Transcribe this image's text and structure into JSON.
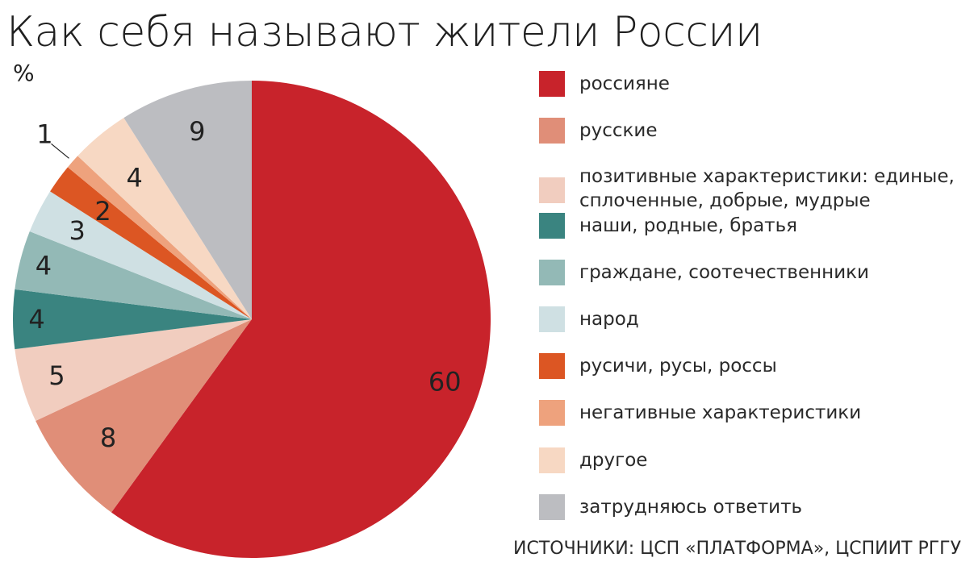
{
  "title": "Как себя называют жители России",
  "unit": "%",
  "source": "ИСТОЧНИКИ: ЦСП «ПЛАТФОРМА», ЦСПИИТ РГГУ",
  "chart_data": {
    "type": "pie",
    "title": "Как себя называют жители России",
    "unit": "%",
    "slices": [
      {
        "label": "россияне",
        "value": 60,
        "display": "60",
        "color": "#c8232b",
        "label_color": "#ffffff"
      },
      {
        "label": "русские",
        "value": 8,
        "display": "8",
        "color": "#e08e78",
        "label_color": "#222222"
      },
      {
        "label": "позитивные характеристики: единые, сплоченные, добрые, мудрые",
        "value": 5,
        "display": "5",
        "color": "#f1cdbf",
        "label_color": "#222222"
      },
      {
        "label": "наши, родные, братья",
        "value": 4,
        "display": "4",
        "color": "#3a8480",
        "label_color": "#ffffff"
      },
      {
        "label": "граждане, соотечественники",
        "value": 4,
        "display": "4",
        "color": "#93b9b6",
        "label_color": "#222222"
      },
      {
        "label": "народ",
        "value": 3,
        "display": "3",
        "color": "#cfe0e3",
        "label_color": "#222222"
      },
      {
        "label": "русичи, русы, россы",
        "value": 2,
        "display": "2",
        "color": "#dc5623",
        "label_color": "#ffffff"
      },
      {
        "label": "негативные характеристики",
        "value": 1,
        "display": "1",
        "color": "#eea27d",
        "label_color": "#222222"
      },
      {
        "label": "другое",
        "value": 4,
        "display": "4",
        "color": "#f7d8c3",
        "label_color": "#222222"
      },
      {
        "label": "затрудняюсь ответить",
        "value": 9,
        "display": "9",
        "color": "#bcbdc1",
        "label_color": "#222222"
      }
    ],
    "legend": [
      [
        "россияне"
      ],
      [
        "русские"
      ],
      [
        "позитивные характеристики: единые,",
        "сплоченные, добрые, мудрые"
      ],
      [
        "наши, родные, братья"
      ],
      [
        "граждане, соотечественники"
      ],
      [
        "народ"
      ],
      [
        "русичи, русы, россы"
      ],
      [
        "негативные характеристики"
      ],
      [
        "другое"
      ],
      [
        "затрудняюсь ответить"
      ]
    ],
    "legend_placement": "right"
  }
}
